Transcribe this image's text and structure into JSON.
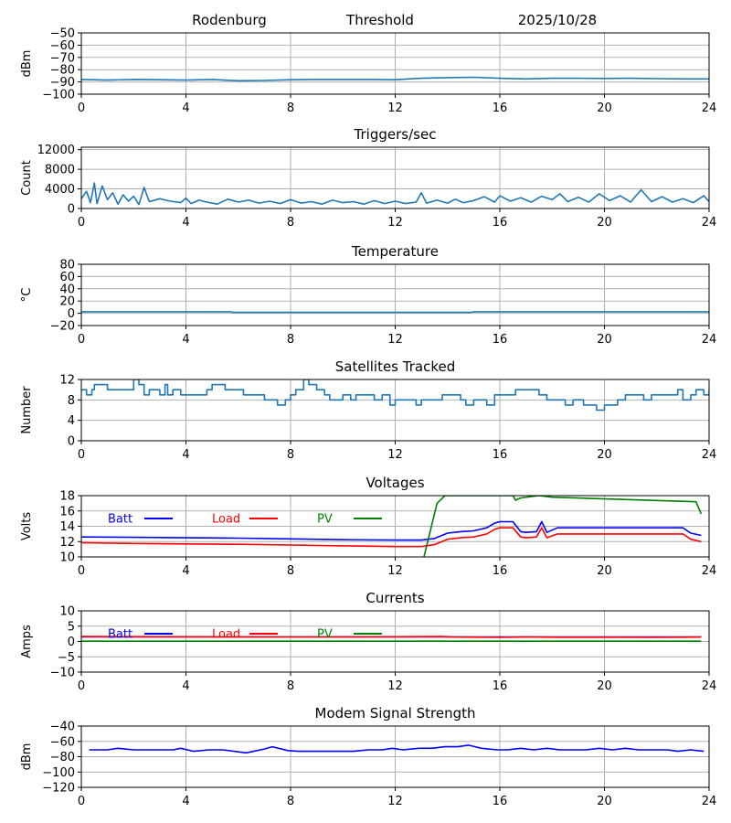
{
  "header": {
    "station": "Rodenburg",
    "mode": "Threshold",
    "date": "2025/10/28"
  },
  "colors": {
    "line": "#1f77b4",
    "batt": "#0000ff",
    "load": "#ff0000",
    "pv": "#008000",
    "grid": "#b0b0b0"
  },
  "chart_data": [
    {
      "type": "line",
      "title": "",
      "ylabel": "dBm",
      "ylim": [
        -100,
        -50
      ],
      "yticks": [
        -100,
        -90,
        -80,
        -70,
        -60,
        -50
      ],
      "xlim": [
        0,
        24
      ],
      "xticks": [
        0,
        4,
        8,
        12,
        16,
        20,
        24
      ],
      "series": [
        {
          "name": "signal",
          "color": "#1f77b4",
          "x": [
            0,
            1,
            2,
            3,
            4,
            5,
            6,
            7,
            8,
            9,
            10,
            11,
            12,
            12.5,
            13,
            14,
            15,
            16,
            17,
            18,
            19,
            20,
            21,
            22,
            23,
            24
          ],
          "y": [
            -88,
            -88.5,
            -88,
            -88.2,
            -88.5,
            -88,
            -89,
            -88.8,
            -88.2,
            -88,
            -88,
            -88,
            -88.2,
            -87.5,
            -87,
            -86.5,
            -86.2,
            -87,
            -87.5,
            -87,
            -87,
            -87.2,
            -87,
            -87.3,
            -87.5,
            -87.5
          ]
        }
      ]
    },
    {
      "type": "line",
      "title": "Triggers/sec",
      "ylabel": "Count",
      "ylim": [
        0,
        12500
      ],
      "yticks": [
        0,
        4000,
        8000,
        12000
      ],
      "xlim": [
        0,
        24
      ],
      "xticks": [
        0,
        4,
        8,
        12,
        16,
        20,
        24
      ],
      "series": [
        {
          "name": "triggers",
          "color": "#1f77b4",
          "x": [
            0,
            0.2,
            0.35,
            0.5,
            0.6,
            0.8,
            1,
            1.2,
            1.4,
            1.6,
            1.8,
            2,
            2.2,
            2.4,
            2.6,
            3,
            3.4,
            3.8,
            4,
            4.2,
            4.5,
            4.8,
            5.2,
            5.6,
            6,
            6.4,
            6.8,
            7.2,
            7.6,
            8,
            8.4,
            8.8,
            9.2,
            9.6,
            10,
            10.4,
            10.8,
            11.2,
            11.6,
            12,
            12.4,
            12.8,
            13,
            13.2,
            13.6,
            14,
            14.3,
            14.6,
            15,
            15.4,
            15.8,
            16,
            16.4,
            16.8,
            17.2,
            17.6,
            18,
            18.3,
            18.6,
            19,
            19.4,
            19.8,
            20.2,
            20.6,
            21,
            21.4,
            21.8,
            22.2,
            22.6,
            23,
            23.4,
            23.8,
            24
          ],
          "y": [
            2000,
            3500,
            1200,
            5200,
            1000,
            4600,
            1800,
            3200,
            900,
            2800,
            1500,
            2500,
            800,
            4300,
            1400,
            2000,
            1500,
            1200,
            2100,
            1000,
            1700,
            1300,
            900,
            1900,
            1300,
            1700,
            1100,
            1500,
            1000,
            1800,
            1100,
            1400,
            900,
            1700,
            1200,
            1400,
            900,
            1600,
            1000,
            1500,
            1000,
            1300,
            3200,
            1100,
            1700,
            1100,
            1900,
            1200,
            1600,
            2400,
            1300,
            2600,
            1500,
            2200,
            1300,
            2500,
            1800,
            3000,
            1400,
            2300,
            1300,
            3000,
            1600,
            2600,
            1300,
            3800,
            1400,
            2400,
            1300,
            2000,
            1200,
            2600,
            1400
          ]
        }
      ]
    },
    {
      "type": "line",
      "title": "Temperature",
      "ylabel": "°C",
      "ylim": [
        -20,
        80
      ],
      "yticks": [
        -20,
        0,
        20,
        40,
        60,
        80
      ],
      "xlim": [
        0,
        24
      ],
      "xticks": [
        0,
        4,
        8,
        12,
        16,
        20,
        24
      ],
      "series": [
        {
          "name": "temperature",
          "color": "#1f77b4",
          "x": [
            0,
            5.7,
            5.8,
            14.9,
            15,
            24
          ],
          "y": [
            2.5,
            2.5,
            1.5,
            1.5,
            2.5,
            2.5
          ]
        }
      ]
    },
    {
      "type": "line",
      "title": "Satellites Tracked",
      "ylabel": "Number",
      "ylim": [
        0,
        12
      ],
      "yticks": [
        0,
        4,
        8,
        12
      ],
      "xlim": [
        0,
        24
      ],
      "xticks": [
        0,
        4,
        8,
        12,
        16,
        20,
        24
      ],
      "series": [
        {
          "name": "satellites",
          "color": "#1f77b4",
          "step": true,
          "x": [
            0,
            0.2,
            0.4,
            0.5,
            1,
            1.5,
            2,
            2.2,
            2.4,
            2.6,
            3,
            3.2,
            3.3,
            3.5,
            3.8,
            4,
            4.5,
            4.8,
            5,
            5.5,
            6,
            6.2,
            7,
            7.5,
            7.8,
            8,
            8.2,
            8.5,
            8.7,
            9,
            9.3,
            9.5,
            10,
            10.3,
            10.5,
            11,
            11.2,
            11.5,
            11.8,
            12,
            12.5,
            12.8,
            13,
            13.5,
            13.8,
            14,
            14.5,
            14.7,
            15,
            15.5,
            15.8,
            16.2,
            16.6,
            17,
            17.5,
            17.8,
            18,
            18.5,
            18.8,
            19.2,
            19.7,
            20,
            20.5,
            20.8,
            21,
            21.5,
            21.8,
            22,
            22.5,
            22.8,
            23,
            23.3,
            23.5,
            23.8,
            24
          ],
          "y": [
            10,
            9,
            10,
            11,
            10,
            10,
            12,
            11,
            9,
            10,
            9,
            11,
            9,
            10,
            9,
            9,
            9,
            10,
            11,
            10,
            10,
            9,
            8,
            7,
            8,
            9,
            10,
            12,
            11,
            10,
            9,
            8,
            9,
            8,
            9,
            9,
            8,
            9,
            7,
            8,
            8,
            7,
            8,
            8,
            9,
            9,
            8,
            7,
            8,
            7,
            9,
            9,
            10,
            10,
            9,
            8,
            8,
            7,
            8,
            7,
            6,
            7,
            8,
            9,
            9,
            8,
            9,
            9,
            9,
            10,
            8,
            9,
            10,
            9,
            10
          ]
        }
      ]
    },
    {
      "type": "line",
      "title": "Voltages",
      "ylabel": "Volts",
      "ylim": [
        10,
        18
      ],
      "yticks": [
        10,
        12,
        14,
        16,
        18
      ],
      "xlim": [
        0,
        24
      ],
      "xticks": [
        0,
        4,
        8,
        12,
        16,
        20,
        24
      ],
      "legend": [
        {
          "label": "Batt",
          "color": "#0000ff"
        },
        {
          "label": "Load",
          "color": "#ff0000"
        },
        {
          "label": "PV",
          "color": "#008000"
        }
      ],
      "series": [
        {
          "name": "Batt",
          "color": "#0000ff",
          "x": [
            0,
            2,
            4,
            6,
            8,
            10,
            12,
            13,
            13.5,
            14,
            14.5,
            15,
            15.5,
            15.8,
            16,
            16.5,
            16.8,
            17,
            17.4,
            17.6,
            17.8,
            18.2,
            19,
            20,
            21,
            22,
            23,
            23.3,
            23.7
          ],
          "y": [
            12.6,
            12.55,
            12.5,
            12.45,
            12.35,
            12.25,
            12.2,
            12.2,
            12.4,
            13.1,
            13.3,
            13.4,
            13.8,
            14.4,
            14.6,
            14.6,
            13.3,
            13.2,
            13.3,
            14.6,
            13.2,
            13.8,
            13.8,
            13.8,
            13.8,
            13.8,
            13.8,
            13.1,
            12.8
          ]
        },
        {
          "name": "Load",
          "color": "#ff0000",
          "x": [
            0,
            2,
            4,
            6,
            8,
            10,
            12,
            13,
            13.5,
            14,
            14.5,
            15,
            15.5,
            15.8,
            16,
            16.5,
            16.8,
            17,
            17.4,
            17.6,
            17.8,
            18.2,
            19,
            20,
            21,
            22,
            23,
            23.3,
            23.7
          ],
          "y": [
            11.85,
            11.75,
            11.7,
            11.65,
            11.55,
            11.45,
            11.35,
            11.35,
            11.6,
            12.3,
            12.5,
            12.6,
            13.0,
            13.6,
            13.8,
            13.8,
            12.6,
            12.5,
            12.6,
            13.8,
            12.5,
            13.0,
            13.0,
            13.0,
            13.0,
            13.0,
            13.0,
            12.3,
            12.0
          ]
        },
        {
          "name": "PV",
          "color": "#008000",
          "x": [
            13.1,
            13.6,
            13.9,
            15,
            15.5,
            16.5,
            16.6,
            16.8,
            17.5,
            18,
            23.5,
            23.7
          ],
          "y": [
            10,
            17,
            18,
            18,
            18,
            18,
            17.4,
            17.7,
            18,
            17.8,
            17.2,
            15.6
          ]
        }
      ]
    },
    {
      "type": "line",
      "title": "Currents",
      "ylabel": "Amps",
      "ylim": [
        -10,
        10
      ],
      "yticks": [
        -10,
        -5,
        0,
        5,
        10
      ],
      "xlim": [
        0,
        24
      ],
      "xticks": [
        0,
        4,
        8,
        12,
        16,
        20,
        24
      ],
      "legend": [
        {
          "label": "Batt",
          "color": "#0000ff"
        },
        {
          "label": "Load",
          "color": "#ff0000"
        },
        {
          "label": "PV",
          "color": "#008000"
        }
      ],
      "series": [
        {
          "name": "Batt",
          "color": "#0000ff",
          "x": [
            0,
            23.7
          ],
          "y": [
            1.5,
            1.5
          ]
        },
        {
          "name": "Load",
          "color": "#ff0000",
          "x": [
            0,
            4,
            8,
            12,
            13.8,
            14.2,
            16,
            17,
            18,
            20,
            22,
            23,
            23.7
          ],
          "y": [
            1.6,
            1.55,
            1.5,
            1.55,
            1.6,
            1.45,
            1.35,
            1.45,
            1.4,
            1.4,
            1.35,
            1.4,
            1.45
          ]
        },
        {
          "name": "PV",
          "color": "#008000",
          "x": [
            0,
            23.7
          ],
          "y": [
            0.1,
            0.1
          ]
        }
      ]
    },
    {
      "type": "line",
      "title": "Modem Signal Strength",
      "ylabel": "dBm",
      "ylim": [
        -120,
        -40
      ],
      "yticks": [
        -120,
        -100,
        -80,
        -60,
        -40
      ],
      "xlim": [
        0,
        24
      ],
      "xticks": [
        0,
        4,
        8,
        12,
        16,
        20,
        24
      ],
      "series": [
        {
          "name": "modem",
          "color": "#0000ff",
          "x": [
            0.3,
            1,
            1.4,
            2,
            3,
            3.5,
            3.8,
            4.3,
            4.9,
            5.4,
            6.3,
            7,
            7.3,
            7.9,
            8.3,
            9,
            10,
            10.4,
            11,
            11.5,
            11.9,
            12.3,
            12.9,
            13.4,
            13.9,
            14.4,
            14.8,
            15.3,
            15.9,
            16.3,
            16.8,
            17.3,
            17.8,
            18.3,
            18.8,
            19.3,
            19.8,
            20.3,
            20.8,
            21.3,
            21.8,
            22.4,
            22.8,
            23.3,
            23.8
          ],
          "y": [
            -71,
            -71,
            -69,
            -71,
            -71,
            -71,
            -69,
            -73,
            -71,
            -71,
            -75,
            -70,
            -67,
            -72,
            -73,
            -73,
            -73,
            -73,
            -71,
            -71,
            -69,
            -71,
            -69,
            -69,
            -67,
            -67,
            -65,
            -69,
            -71,
            -71,
            -69,
            -71,
            -69,
            -71,
            -71,
            -71,
            -69,
            -71,
            -69,
            -71,
            -71,
            -71,
            -73,
            -71,
            -73
          ]
        }
      ]
    }
  ]
}
